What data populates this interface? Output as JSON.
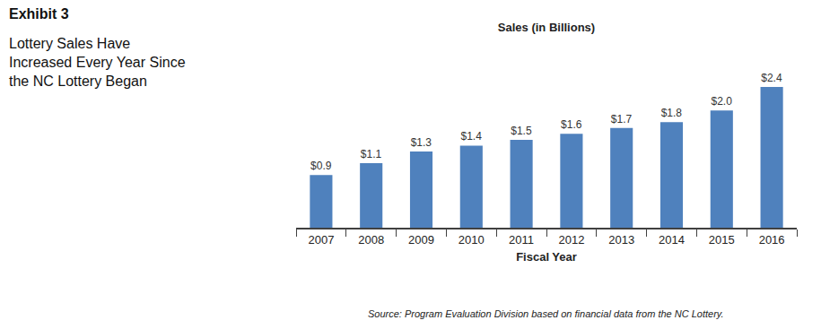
{
  "chart_data": {
    "type": "bar",
    "exhibit": "Exhibit 3",
    "subtitle": "Lottery Sales Have Increased Every Year Since the NC Lottery Began",
    "title": "Sales (in Billions)",
    "x_label": "Fiscal Year",
    "source": "Source: Program Evaluation Division based on financial data from the NC Lottery.",
    "categories": [
      "2007",
      "2008",
      "2009",
      "2010",
      "2011",
      "2012",
      "2013",
      "2014",
      "2015",
      "2016"
    ],
    "values": [
      0.9,
      1.1,
      1.3,
      1.4,
      1.5,
      1.6,
      1.7,
      1.8,
      2.0,
      2.4
    ],
    "value_labels": [
      "$0.9",
      "$1.1",
      "$1.3",
      "$1.4",
      "$1.5",
      "$1.6",
      "$1.7",
      "$1.8",
      "$2.0",
      "$2.4"
    ],
    "color": "#4F81BD",
    "ylim": [
      0,
      2.4
    ],
    "grid": false,
    "data_labels": true,
    "tick_labels": "x"
  }
}
